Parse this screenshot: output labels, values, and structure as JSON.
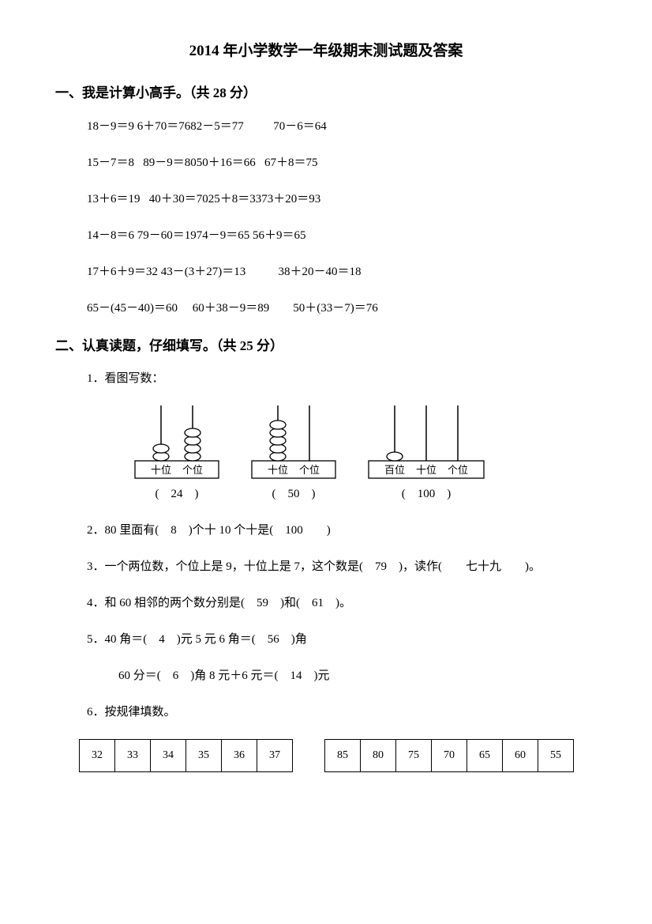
{
  "title": "2014 年小学数学一年级期末测试题及答案",
  "section1": {
    "heading": "一、我是计算小高手。（共 28 分）",
    "lines": [
      "18－9＝9 6＋70＝7682－5＝77          70－6＝64",
      "15－7＝8   89－9＝8050＋16＝66   67＋8＝75",
      "13＋6＝19   40＋30＝7025＋8＝3373＋20＝93",
      "14－8＝6 79－60＝1974－9＝65 56＋9＝65",
      "17＋6＋9＝32 43－(3＋27)＝13           38＋20－40＝18",
      "65－(45－40)＝60     60＋38－9＝89        50＋(33－7)＝76"
    ]
  },
  "section2": {
    "heading": "二、认真读题，仔细填写。（共 25 分）",
    "q1_label": "1．看图写数：",
    "abacus": [
      {
        "rods": [
          {
            "label": "十位",
            "beads": 2
          },
          {
            "label": "个位",
            "beads": 4
          }
        ],
        "answer": "(　24　)"
      },
      {
        "rods": [
          {
            "label": "十位",
            "beads": 5
          },
          {
            "label": "个位",
            "beads": 0
          }
        ],
        "answer": "(　50　)"
      },
      {
        "rods": [
          {
            "label": "百位",
            "beads": 1
          },
          {
            "label": "十位",
            "beads": 0
          },
          {
            "label": "个位",
            "beads": 0
          }
        ],
        "answer": "(　100　)"
      }
    ],
    "q2": "2．80 里面有(　8　)个十 10 个十是(　100　　)",
    "q3": "3．一个两位数，个位上是 9，十位上是 7，这个数是(　79　)，读作(　　七十九　　)。",
    "q4": "4．和 60 相邻的两个数分别是(　59　)和(　61　)。",
    "q5a": "5．40 角＝(　4　)元 5 元 6 角＝(　56　)角",
    "q5b": "60 分＝(　6　)角 8 元＋6 元＝(　14　)元",
    "q6_label": "6．按规律填数。",
    "table1": [
      "32",
      "33",
      "34",
      "35",
      "36",
      "37"
    ],
    "table2": [
      "85",
      "80",
      "75",
      "70",
      "65",
      "60",
      "55"
    ]
  },
  "style": {
    "bead_fill": "#ffffff",
    "bead_stroke": "#000000",
    "rod_stroke": "#000000",
    "box_stroke": "#000000"
  }
}
